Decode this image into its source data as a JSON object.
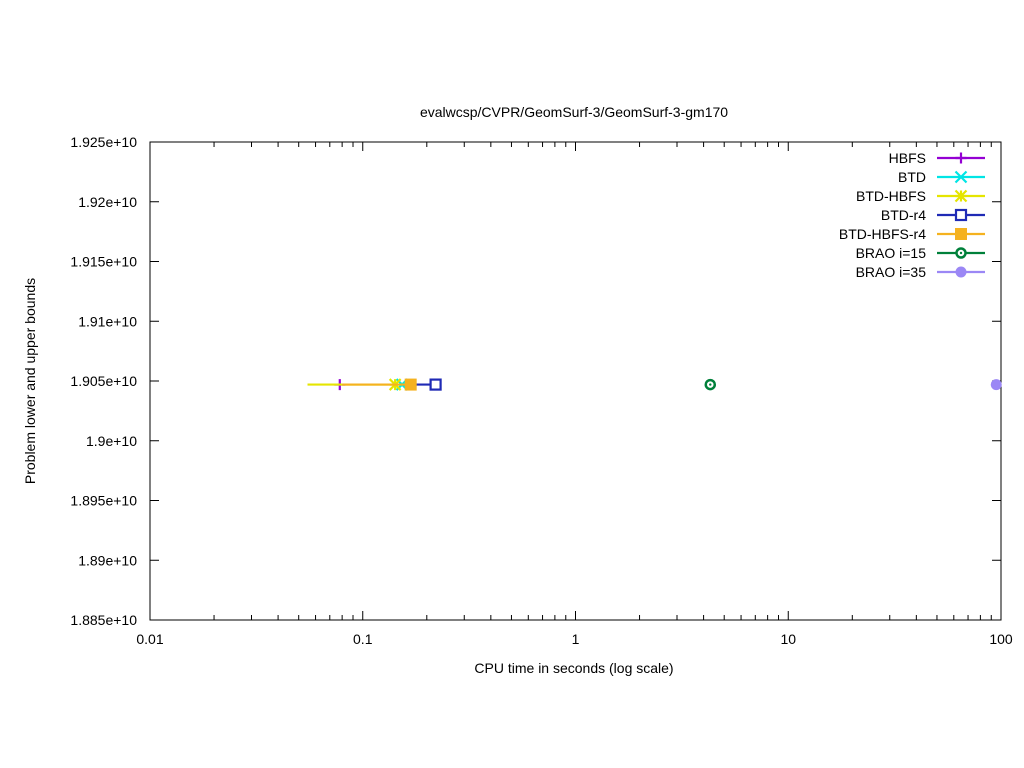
{
  "chart_data": {
    "type": "line",
    "title": "evalwcsp/CVPR/GeomSurf-3/GeomSurf-3-gm170",
    "xlabel": "CPU time in seconds (log scale)",
    "ylabel": "Problem lower and upper bounds",
    "x_scale": "log",
    "xlim": [
      0.01,
      100
    ],
    "ylim": [
      18850000000.0,
      19250000000.0
    ],
    "x_ticks": [
      {
        "value": 0.01,
        "label": "0.01"
      },
      {
        "value": 0.1,
        "label": "0.1"
      },
      {
        "value": 1,
        "label": "1"
      },
      {
        "value": 10,
        "label": "10"
      },
      {
        "value": 100,
        "label": "100"
      }
    ],
    "y_ticks": [
      {
        "value": 18850000000.0,
        "label": "1.885e+10"
      },
      {
        "value": 18900000000.0,
        "label": "1.89e+10"
      },
      {
        "value": 18950000000.0,
        "label": "1.895e+10"
      },
      {
        "value": 19000000000.0,
        "label": "1.9e+10"
      },
      {
        "value": 19050000000.0,
        "label": "1.905e+10"
      },
      {
        "value": 19100000000.0,
        "label": "1.91e+10"
      },
      {
        "value": 19150000000.0,
        "label": "1.915e+10"
      },
      {
        "value": 19200000000.0,
        "label": "1.92e+10"
      },
      {
        "value": 19250000000.0,
        "label": "1.925e+10"
      }
    ],
    "grid": false,
    "legend_position": "top-right",
    "series": [
      {
        "name": "HBFS",
        "color": "#9400d3",
        "marker": "plus",
        "x": [
          0.078
        ],
        "y": [
          19047000000.0
        ]
      },
      {
        "name": "BTD",
        "color": "#00e5e5",
        "marker": "cross",
        "x": [
          0.153
        ],
        "y": [
          19047000000.0
        ]
      },
      {
        "name": "BTD-HBFS",
        "color": "#e5e500",
        "marker": "star",
        "x": [
          0.055,
          0.142
        ],
        "y": [
          19047000000.0,
          19047000000.0
        ]
      },
      {
        "name": "BTD-r4",
        "color": "#1f2ab5",
        "marker": "open-square",
        "x": [
          0.155,
          0.22
        ],
        "y": [
          19047000000.0,
          19047000000.0
        ]
      },
      {
        "name": "BTD-HBFS-r4",
        "color": "#f5b21f",
        "marker": "filled-square",
        "x": [
          0.08,
          0.168
        ],
        "y": [
          19047000000.0,
          19047000000.0
        ]
      },
      {
        "name": "BRAO i=15",
        "color": "#00803a",
        "marker": "open-circle-dot",
        "x": [
          4.3
        ],
        "y": [
          19047000000.0
        ]
      },
      {
        "name": "BRAO i=35",
        "color": "#9b87f5",
        "marker": "filled-circle",
        "x": [
          95
        ],
        "y": [
          19047000000.0
        ]
      }
    ]
  }
}
